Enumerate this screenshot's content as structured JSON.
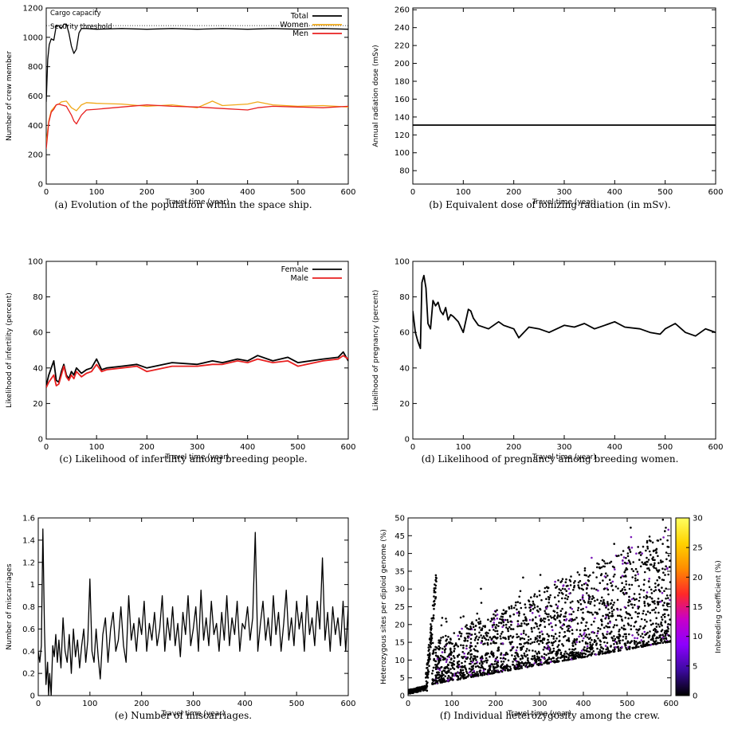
{
  "chart_data": [
    {
      "id": "a",
      "type": "line",
      "caption": "(a) Evolution of the population within the space ship.",
      "xlabel": "Travel time (year)",
      "ylabel": "Number of crew member",
      "xlim": [
        0,
        600
      ],
      "ylim": [
        0,
        1200
      ],
      "xticks": [
        0,
        100,
        200,
        300,
        400,
        500,
        600
      ],
      "yticks": [
        0,
        200,
        400,
        600,
        800,
        1000,
        1200
      ],
      "legend_position": "top-right",
      "hlines": [
        {
          "label": "Cargo capacity",
          "value": 1200,
          "style": "dotted"
        },
        {
          "label": "Security threshold",
          "value": 1080,
          "style": "dotted"
        }
      ],
      "series": [
        {
          "name": "Total",
          "color": "#000000",
          "x": [
            0,
            3,
            6,
            10,
            15,
            20,
            25,
            30,
            35,
            40,
            45,
            50,
            55,
            60,
            65,
            70,
            80,
            100,
            150,
            200,
            250,
            300,
            350,
            400,
            450,
            500,
            550,
            600
          ],
          "y": [
            560,
            850,
            950,
            990,
            980,
            1080,
            1080,
            1060,
            1090,
            1090,
            1030,
            940,
            890,
            920,
            1030,
            1060,
            1060,
            1055,
            1060,
            1055,
            1060,
            1055,
            1060,
            1055,
            1060,
            1055,
            1060,
            1055
          ]
        },
        {
          "name": "Women",
          "color": "#f0a818",
          "x": [
            0,
            5,
            10,
            15,
            20,
            25,
            30,
            40,
            50,
            60,
            70,
            80,
            100,
            150,
            200,
            250,
            300,
            330,
            350,
            400,
            420,
            450,
            500,
            550,
            600
          ],
          "y": [
            280,
            430,
            500,
            520,
            540,
            545,
            560,
            565,
            520,
            500,
            540,
            555,
            550,
            545,
            530,
            540,
            520,
            565,
            535,
            545,
            560,
            540,
            530,
            535,
            525
          ]
        },
        {
          "name": "Men",
          "color": "#e82020",
          "x": [
            0,
            5,
            10,
            15,
            20,
            25,
            30,
            40,
            50,
            55,
            60,
            70,
            80,
            100,
            150,
            200,
            250,
            300,
            350,
            400,
            420,
            450,
            500,
            550,
            600
          ],
          "y": [
            240,
            420,
            490,
            510,
            540,
            545,
            540,
            530,
            470,
            430,
            410,
            470,
            505,
            510,
            525,
            540,
            530,
            525,
            515,
            505,
            520,
            530,
            525,
            520,
            530
          ]
        }
      ]
    },
    {
      "id": "b",
      "type": "line",
      "caption": "(b) Equivalent dose of ionizing radiation (in mSv).",
      "xlabel": "Travel time (year)",
      "ylabel": "Annual radiation dose (mSv)",
      "xlim": [
        0,
        600
      ],
      "ylim": [
        65,
        262
      ],
      "xticks": [
        0,
        100,
        200,
        300,
        400,
        500,
        600
      ],
      "yticks": [
        80,
        100,
        120,
        140,
        160,
        180,
        200,
        220,
        240,
        260
      ],
      "series": [
        {
          "name": "",
          "color": "#000000",
          "x": [
            0,
            600
          ],
          "y": [
            131,
            131
          ]
        }
      ]
    },
    {
      "id": "c",
      "type": "line",
      "caption": "(c) Likelihood of infertility among breeding people.",
      "xlabel": "Travel time (year)",
      "ylabel": "Likelihood of infertility (percent)",
      "xlim": [
        0,
        600
      ],
      "ylim": [
        0,
        100
      ],
      "xticks": [
        0,
        100,
        200,
        300,
        400,
        500,
        600
      ],
      "yticks": [
        0,
        20,
        40,
        60,
        80,
        100
      ],
      "legend_position": "top-right",
      "series": [
        {
          "name": "Female",
          "color": "#000000",
          "x": [
            0,
            5,
            10,
            15,
            20,
            25,
            30,
            35,
            40,
            45,
            50,
            55,
            60,
            70,
            80,
            90,
            100,
            110,
            120,
            150,
            180,
            200,
            250,
            300,
            330,
            350,
            380,
            400,
            420,
            450,
            480,
            500,
            550,
            580,
            590,
            600
          ],
          "y": [
            30,
            36,
            40,
            44,
            33,
            32,
            38,
            42,
            36,
            34,
            38,
            36,
            40,
            37,
            39,
            40,
            45,
            39,
            40,
            41,
            42,
            40,
            43,
            42,
            44,
            43,
            45,
            44,
            47,
            44,
            46,
            43,
            45,
            46,
            49,
            44
          ]
        },
        {
          "name": "Male",
          "color": "#e82020",
          "x": [
            0,
            5,
            10,
            15,
            20,
            25,
            30,
            35,
            40,
            45,
            50,
            55,
            60,
            70,
            80,
            90,
            100,
            110,
            120,
            150,
            180,
            200,
            250,
            300,
            330,
            350,
            380,
            400,
            420,
            450,
            480,
            500,
            550,
            580,
            590,
            600
          ],
          "y": [
            29,
            32,
            34,
            36,
            30,
            31,
            36,
            41,
            35,
            33,
            36,
            34,
            38,
            35,
            37,
            38,
            42,
            38,
            39,
            40,
            41,
            38,
            41,
            41,
            42,
            42,
            44,
            43,
            45,
            43,
            44,
            41,
            44,
            45,
            47,
            45
          ]
        }
      ]
    },
    {
      "id": "d",
      "type": "line",
      "caption": "(d) Likelihood of pregnancy among breeding women.",
      "xlabel": "Travel time (year)",
      "ylabel": "Likelihood of pregnancy (percent)",
      "xlim": [
        0,
        600
      ],
      "ylim": [
        0,
        100
      ],
      "xticks": [
        0,
        100,
        200,
        300,
        400,
        500,
        600
      ],
      "yticks": [
        0,
        20,
        40,
        60,
        80,
        100
      ],
      "series": [
        {
          "name": "",
          "color": "#000000",
          "x": [
            0,
            5,
            10,
            15,
            18,
            22,
            26,
            30,
            35,
            40,
            45,
            50,
            55,
            60,
            65,
            70,
            75,
            80,
            90,
            100,
            110,
            115,
            120,
            130,
            150,
            170,
            180,
            200,
            210,
            230,
            250,
            270,
            300,
            320,
            340,
            360,
            380,
            400,
            420,
            450,
            470,
            490,
            500,
            520,
            540,
            560,
            580,
            600
          ],
          "y": [
            72,
            60,
            55,
            51,
            88,
            92,
            85,
            65,
            62,
            78,
            75,
            77,
            72,
            70,
            74,
            67,
            70,
            69,
            66,
            60,
            73,
            72,
            68,
            64,
            62,
            66,
            64,
            62,
            57,
            63,
            62,
            60,
            64,
            63,
            65,
            62,
            64,
            66,
            63,
            62,
            60,
            59,
            62,
            65,
            60,
            58,
            62,
            60
          ]
        }
      ]
    },
    {
      "id": "e",
      "type": "line",
      "caption": "(e) Number of miscarriages.",
      "xlabel": "Travel time (year)",
      "ylabel": "Number of miscarriages",
      "xlim": [
        0,
        600
      ],
      "ylim": [
        0,
        1.6
      ],
      "xticks": [
        0,
        100,
        200,
        300,
        400,
        500,
        600
      ],
      "yticks": [
        0,
        0.2,
        0.4,
        0.6,
        0.8,
        1.0,
        1.2,
        1.4,
        1.6
      ],
      "ytick_labels": [
        "0",
        "0.2",
        "0.4",
        "0.6",
        "0.8",
        "1",
        "1.2",
        "1.4",
        "1.6"
      ],
      "series": [
        {
          "name": "",
          "color": "#000000",
          "x": [
            0,
            3,
            6,
            9,
            12,
            15,
            18,
            20,
            22,
            25,
            28,
            31,
            34,
            37,
            40,
            44,
            48,
            52,
            56,
            60,
            64,
            68,
            72,
            76,
            80,
            84,
            88,
            92,
            96,
            100,
            104,
            108,
            112,
            116,
            120,
            125,
            130,
            135,
            140,
            145,
            150,
            155,
            160,
            165,
            170,
            175,
            180,
            185,
            190,
            195,
            200,
            205,
            210,
            215,
            220,
            225,
            230,
            235,
            240,
            245,
            250,
            255,
            260,
            265,
            270,
            275,
            280,
            285,
            290,
            295,
            300,
            305,
            310,
            315,
            320,
            325,
            330,
            335,
            340,
            345,
            350,
            355,
            360,
            365,
            370,
            375,
            380,
            385,
            390,
            395,
            400,
            405,
            410,
            415,
            420,
            425,
            430,
            435,
            440,
            445,
            450,
            455,
            460,
            465,
            470,
            475,
            480,
            485,
            490,
            495,
            500,
            505,
            510,
            515,
            520,
            525,
            530,
            535,
            540,
            545,
            550,
            555,
            560,
            565,
            570,
            575,
            580,
            585,
            590,
            595,
            600
          ],
          "y": [
            0.4,
            0.3,
            0.45,
            1.5,
            0.6,
            0.1,
            0.3,
            0.0,
            0.2,
            0.0,
            0.45,
            0.35,
            0.55,
            0.3,
            0.5,
            0.25,
            0.7,
            0.4,
            0.3,
            0.55,
            0.2,
            0.6,
            0.35,
            0.5,
            0.25,
            0.45,
            0.6,
            0.3,
            0.5,
            1.05,
            0.4,
            0.3,
            0.6,
            0.35,
            0.15,
            0.55,
            0.7,
            0.3,
            0.6,
            0.75,
            0.4,
            0.5,
            0.8,
            0.45,
            0.3,
            0.9,
            0.5,
            0.65,
            0.4,
            0.7,
            0.55,
            0.85,
            0.4,
            0.65,
            0.5,
            0.75,
            0.45,
            0.6,
            0.9,
            0.4,
            0.7,
            0.5,
            0.8,
            0.45,
            0.65,
            0.35,
            0.75,
            0.55,
            0.9,
            0.45,
            0.6,
            0.8,
            0.4,
            0.95,
            0.5,
            0.7,
            0.45,
            0.85,
            0.55,
            0.65,
            0.4,
            0.75,
            0.5,
            0.9,
            0.45,
            0.7,
            0.55,
            0.85,
            0.4,
            0.65,
            0.6,
            0.8,
            0.5,
            0.7,
            1.47,
            0.4,
            0.65,
            0.85,
            0.5,
            0.7,
            0.45,
            0.9,
            0.55,
            0.75,
            0.4,
            0.65,
            0.95,
            0.5,
            0.7,
            0.45,
            0.85,
            0.6,
            0.75,
            0.4,
            0.9,
            0.55,
            0.7,
            0.45,
            0.85,
            0.6,
            1.24,
            0.5,
            0.75,
            0.4,
            0.8,
            0.55,
            0.7,
            0.45,
            0.85,
            0.4,
            0.8
          ]
        }
      ]
    },
    {
      "id": "f",
      "type": "scatter",
      "caption": "(f) Individual heterozygosity among the crew.",
      "xlabel": "Travel time (year)",
      "ylabel": "Heterozygous sites per diploid genome (%)",
      "xlim": [
        0,
        600
      ],
      "ylim": [
        0,
        50
      ],
      "xticks": [
        0,
        100,
        200,
        300,
        400,
        500,
        600
      ],
      "yticks": [
        0,
        5,
        10,
        15,
        20,
        25,
        30,
        35,
        40,
        45,
        50
      ],
      "colorbar": {
        "label": "Inbreeding coefficient (%)",
        "range": [
          0,
          30
        ],
        "ticks": [
          0,
          5,
          10,
          15,
          20,
          25,
          30
        ],
        "colors": [
          "#000000",
          "#3c0aa0",
          "#8c00ff",
          "#c800c8",
          "#ff2828",
          "#ff8c00",
          "#ffd200",
          "#ffff60"
        ]
      },
      "point_color": "#000000",
      "point_color_alt": "#7a18b8",
      "description_points": [
        [
          0,
          1
        ],
        [
          20,
          1
        ],
        [
          40,
          2
        ],
        [
          50,
          8
        ],
        [
          55,
          15
        ],
        [
          60,
          25
        ],
        [
          65,
          35
        ],
        [
          100,
          10
        ],
        [
          150,
          25
        ],
        [
          200,
          30
        ],
        [
          300,
          40
        ],
        [
          400,
          45
        ],
        [
          500,
          40
        ],
        [
          600,
          50
        ],
        [
          100,
          5
        ],
        [
          200,
          8
        ],
        [
          300,
          10
        ],
        [
          400,
          12
        ],
        [
          500,
          14
        ],
        [
          600,
          15
        ]
      ]
    }
  ]
}
